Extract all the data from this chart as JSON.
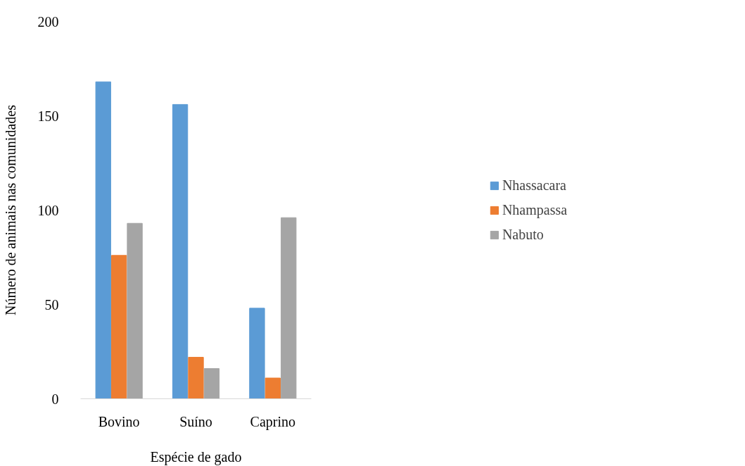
{
  "chart_data": {
    "type": "bar",
    "xlabel": "Espécie de gado",
    "ylabel": "Número de animais nas comunidades",
    "categories": [
      "Bovino",
      "Suíno",
      "Caprino"
    ],
    "series": [
      {
        "name": "Nhassacara",
        "color": "#5b9bd5",
        "values": [
          168,
          156,
          48
        ]
      },
      {
        "name": "Nhampassa",
        "color": "#ed7d31",
        "values": [
          76,
          22,
          11
        ]
      },
      {
        "name": "Nabuto",
        "color": "#a5a5a5",
        "values": [
          93,
          16,
          96
        ]
      }
    ],
    "ylim": [
      0,
      200
    ],
    "yticks": [
      0,
      50,
      100,
      150,
      200
    ],
    "grid": false,
    "legend": "right"
  }
}
